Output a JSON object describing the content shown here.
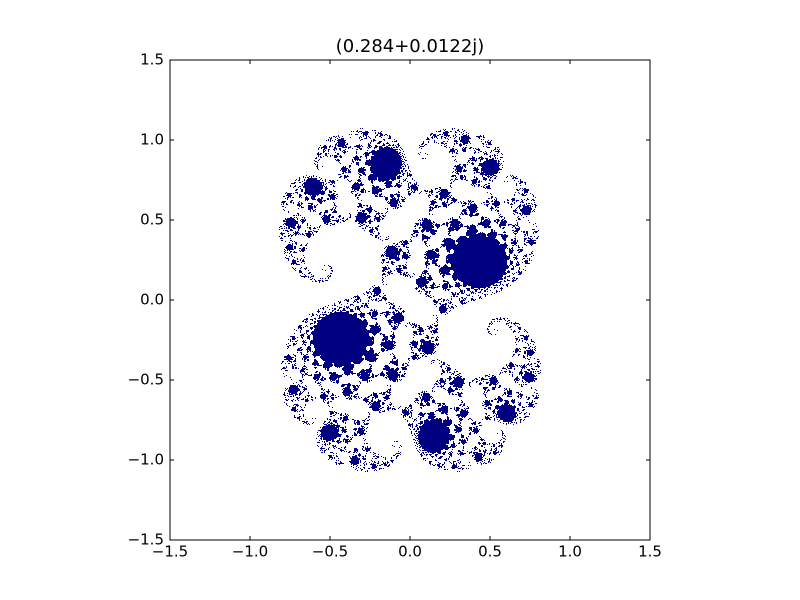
{
  "chart_data": {
    "type": "julia",
    "title": "(0.284+0.0122j)",
    "color": "#000080",
    "xlim": [
      -1.5,
      1.5
    ],
    "ylim": [
      -1.5,
      1.5
    ],
    "xticks": [
      {
        "value": -1.5,
        "label": "−1.5"
      },
      {
        "value": -1.0,
        "label": "−1.0"
      },
      {
        "value": -0.5,
        "label": "−0.5"
      },
      {
        "value": 0.0,
        "label": "0.0"
      },
      0.5,
      {
        "value": 1.0,
        "label": "1.0"
      },
      1.5
    ],
    "yticks": [
      {
        "value": -1.5,
        "label": "−1.5"
      },
      {
        "value": -1.0,
        "label": "−1.0"
      },
      {
        "value": -0.5,
        "label": "−0.5"
      },
      {
        "value": 0.0,
        "label": "0.0"
      },
      0.5,
      {
        "value": 1.0,
        "label": "1.0"
      },
      1.5
    ]
  }
}
